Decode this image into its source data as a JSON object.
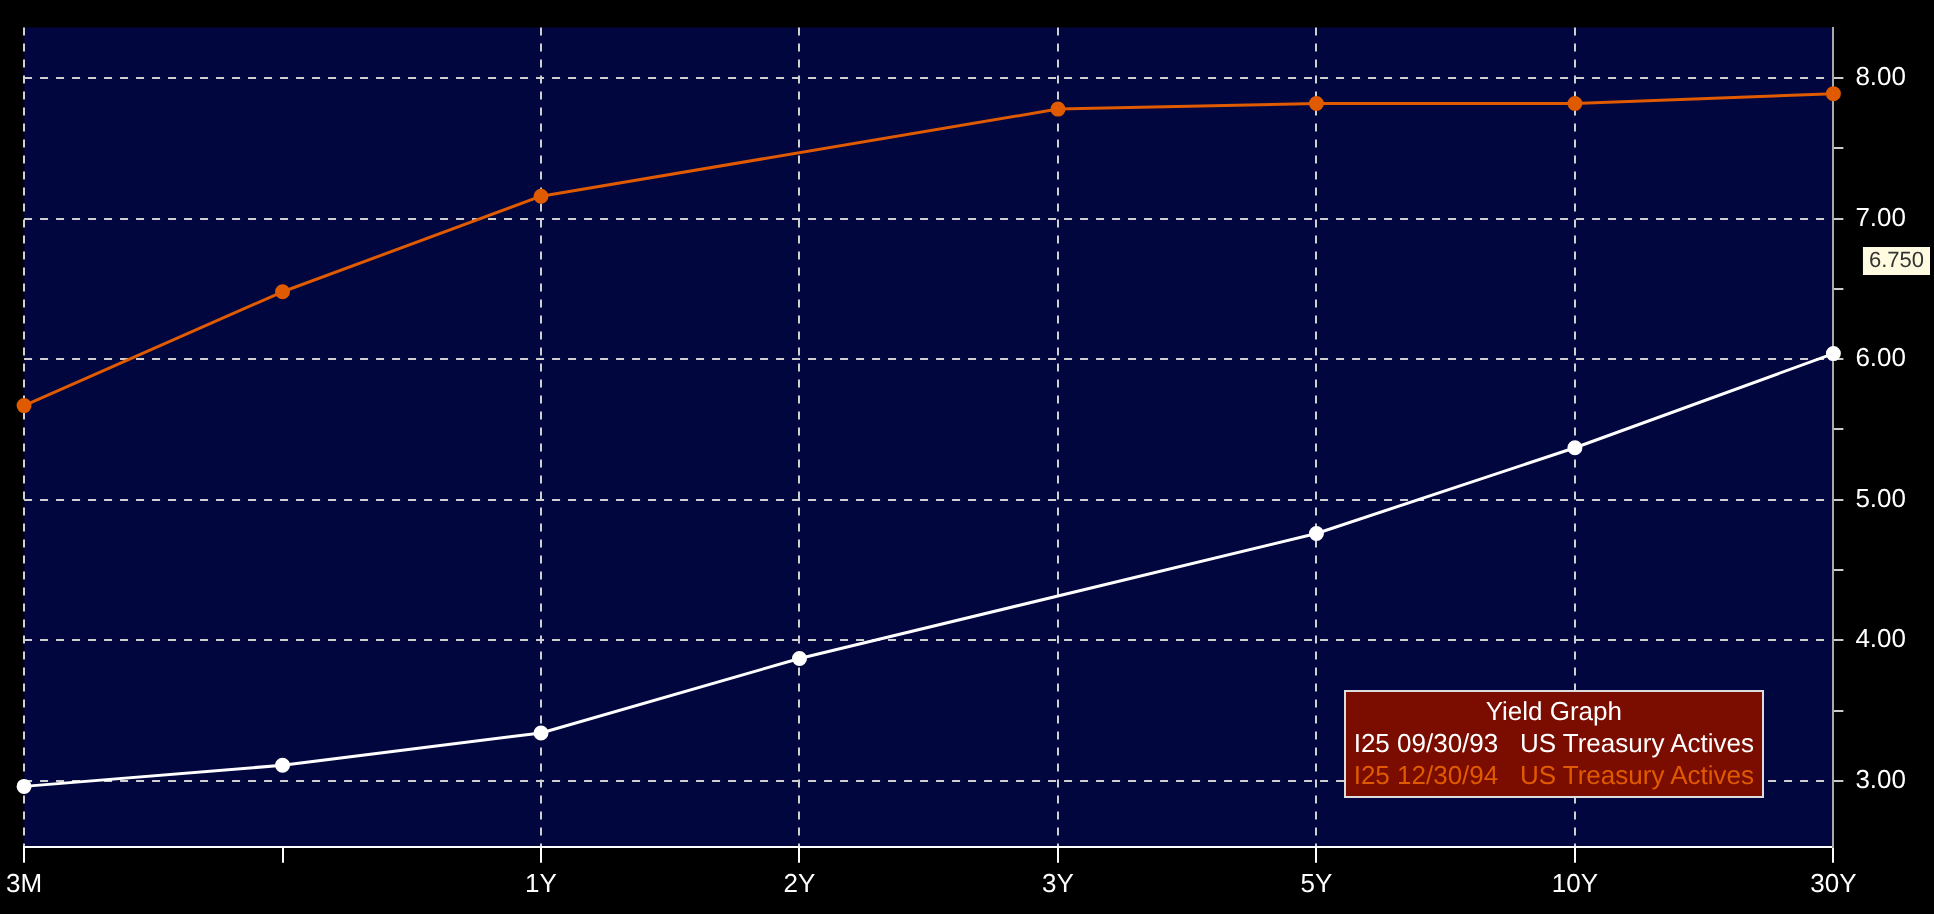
{
  "chart_data": {
    "type": "line",
    "legend_title": "Yield Graph",
    "categories": [
      "3M",
      null,
      "1Y",
      "2Y",
      "3Y",
      "5Y",
      "10Y",
      "30Y"
    ],
    "series": [
      {
        "name": "I25 09/30/93   US Treasury Actives",
        "color": "#ffffff",
        "values": [
          2.96,
          3.11,
          3.34,
          3.87,
          null,
          4.76,
          5.37,
          6.04
        ]
      },
      {
        "name": "I25 12/30/94   US Treasury Actives",
        "color": "#e05a00",
        "values": [
          5.67,
          6.48,
          7.16,
          null,
          7.78,
          7.82,
          7.82,
          7.89
        ]
      }
    ],
    "ylim": [
      2.53,
      8.36
    ],
    "yticks": [
      {
        "value": 3,
        "label": "3.00"
      },
      {
        "value": 3.5,
        "label": null
      },
      {
        "value": 4,
        "label": "4.00"
      },
      {
        "value": 4.5,
        "label": null
      },
      {
        "value": 5,
        "label": "5.00"
      },
      {
        "value": 5.5,
        "label": null
      },
      {
        "value": 6,
        "label": "6.00"
      },
      {
        "value": 6.5,
        "label": null
      },
      {
        "value": 7,
        "label": "7.00"
      },
      {
        "value": 7.5,
        "label": null
      },
      {
        "value": 8,
        "label": "8.00"
      }
    ],
    "annotations": [
      "6.750"
    ],
    "grid": true,
    "legend": "bottom right",
    "marker": "circle",
    "line_style": "solid"
  }
}
